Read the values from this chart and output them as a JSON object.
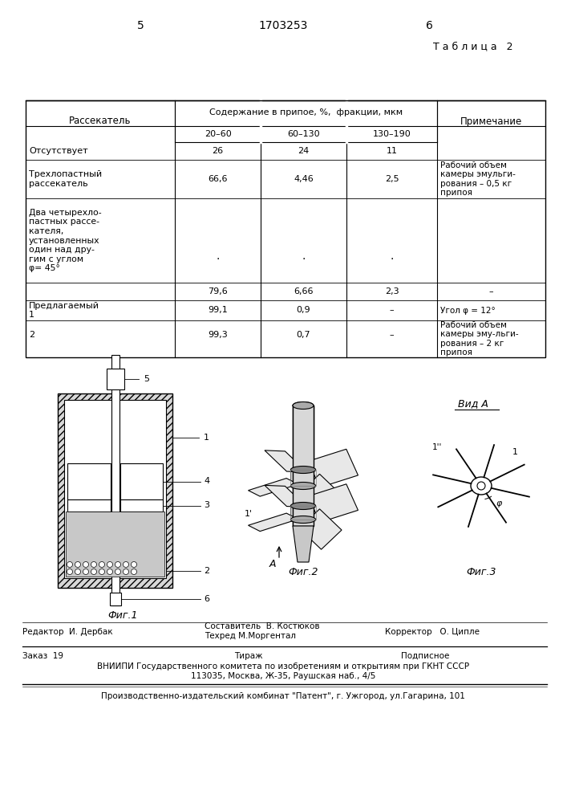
{
  "page_left": "5",
  "page_center": "1703253",
  "page_right": "6",
  "table_title": "Т а б л и ц а   2",
  "hdr_col1": "Рассекатель",
  "hdr_merged": "Содержание в припое, %,  фракции, мкм",
  "hdr_sub1": "20–60",
  "hdr_sub2": "60–130",
  "hdr_sub3": "130–190",
  "hdr_note": "Примечание",
  "r1c0": "Отсутствует",
  "r1c1": "26",
  "r1c2": "24",
  "r1c3": "11",
  "r1c4": "",
  "r2c0": "Трехлопастный\nрассекатель",
  "r2c1": "66,6",
  "r2c2": "4,46",
  "r2c3": "2,5",
  "r2c4": "Рабочий объем\nкамеры эмульги-\nрования – 0,5 кг\nприпоя",
  "r3c0": "Два четырехло-\nпастных рассе-\nкателя,\nустановленных\nодин над дру-\nгим с углом\nφ= 45°",
  "r3c1": "·",
  "r3c2": "·",
  "r3c3": "·",
  "r3c4": "",
  "r4c0": "",
  "r4c1": "79,6",
  "r4c2": "6,66",
  "r4c3": "2,3",
  "r4c4": "–",
  "r5c0": "Предлагаемый\n1",
  "r5c1": "99,1",
  "r5c2": "0,9",
  "r5c3": "–",
  "r5c4": "Угол φ = 12°",
  "r6c0": "2",
  "r6c1": "99,3",
  "r6c2": "0,7",
  "r6c3": "–",
  "r6c4": "Рабочий объем\nкамеры эму-льги-\nрования – 2 кг\nприпоя",
  "fig1_cap": "Фиг.1",
  "fig2_cap": "Фиг.2",
  "fig3_cap": "Фиг.3",
  "vid_a": "Вид А",
  "lbl1": "1",
  "lbl2": "2",
  "lbl3": "3",
  "lbl4": "4",
  "lbl5": "5",
  "lbl6": "6",
  "fig2_lbl": "1'",
  "fig3_lbl1": "1''",
  "fig3_lbl2": "1",
  "phi_lbl": "φ",
  "arrow_a": "А",
  "editor": "Редактор  И. Дербак",
  "composer": "Составитель  В. Костюков",
  "techred": "Техред М.Моргентал",
  "corrector": "Корректор   О. Ципле",
  "order": "Заказ  19",
  "tirazh": "Тираж",
  "podpisnoe": "Подписное",
  "vniiipi": "ВНИИПИ Государственного комитета по изобретениям и открытиям при ГКНТ СССР",
  "address": "113035, Москва, Ж-35, Раушская наб., 4/5",
  "publisher": "Производственно-издательский комбинат \"Патент\", г. Ужгород, ул.Гагарина, 101"
}
